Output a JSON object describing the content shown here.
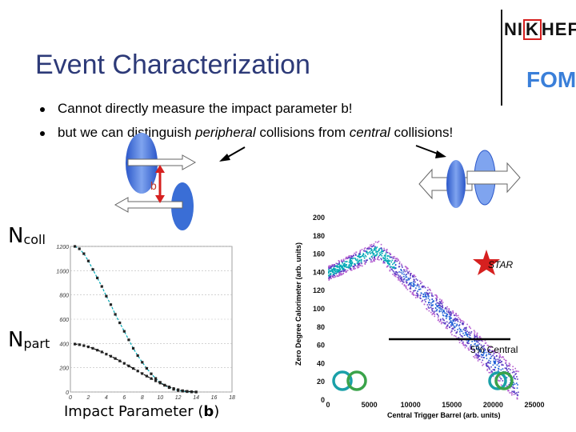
{
  "slide": {
    "title": "Event Characterization",
    "bullets": [
      {
        "pre": "Cannot directly measure the impact parameter b!",
        "em1": "",
        "mid": "",
        "em2": "",
        "post": ""
      },
      {
        "pre": "but we can distinguish ",
        "em1": "peripheral",
        "mid": " collisions from ",
        "em2": "central",
        "post": " collisions!"
      }
    ],
    "logos": {
      "nikhef_pre": "NI",
      "nikhef_k": "K",
      "nikhef_post": "HEF",
      "fom": "FOM"
    },
    "diagram": {
      "impact_label": "b"
    },
    "labels": {
      "ncoll_main": "N",
      "ncoll_sub": "coll",
      "npart_main": "N",
      "npart_sub": "part",
      "impact_axis_pre": "Impact Parameter (",
      "impact_axis_b": "b",
      "impact_axis_post": ")",
      "star": "STAR",
      "central": "5% Central"
    }
  },
  "chart_data": [
    {
      "type": "scatter",
      "title": "",
      "xlabel": "Impact Parameter (b)",
      "ylabel": "",
      "xlim": [
        0,
        18
      ],
      "ylim": [
        0,
        1200
      ],
      "xticks": [
        "0",
        "2",
        "4",
        "6",
        "8",
        "10",
        "12",
        "14",
        "16",
        "18"
      ],
      "yticks": [
        "0",
        "200",
        "400",
        "600",
        "800",
        "1000",
        "1200"
      ],
      "series": [
        {
          "name": "Ncoll",
          "color": "#00a8b5",
          "x": [
            0.5,
            1,
            1.5,
            2,
            2.5,
            3,
            3.5,
            4,
            4.5,
            5,
            5.5,
            6,
            6.5,
            7,
            7.5,
            8,
            8.5,
            9,
            9.5,
            10,
            10.5,
            11,
            11.5,
            12,
            12.5,
            13,
            13.5,
            14
          ],
          "y": [
            1200,
            1180,
            1140,
            1080,
            1010,
            940,
            870,
            790,
            720,
            640,
            570,
            500,
            430,
            360,
            300,
            245,
            195,
            150,
            112,
            80,
            55,
            36,
            22,
            13,
            7,
            3,
            1,
            0
          ]
        },
        {
          "name": "Npart",
          "color": "#111111",
          "x": [
            0.5,
            1,
            1.5,
            2,
            2.5,
            3,
            3.5,
            4,
            4.5,
            5,
            5.5,
            6,
            6.5,
            7,
            7.5,
            8,
            8.5,
            9,
            9.5,
            10,
            10.5,
            11,
            11.5,
            12,
            12.5,
            13,
            13.5,
            14
          ],
          "y": [
            395,
            390,
            382,
            372,
            360,
            345,
            330,
            312,
            295,
            276,
            256,
            236,
            215,
            194,
            173,
            152,
            131,
            111,
            92,
            74,
            57,
            42,
            29,
            19,
            11,
            6,
            2,
            0
          ]
        }
      ]
    },
    {
      "type": "heatmap",
      "title": "",
      "xlabel": "Central Trigger Barrel (arb. units)",
      "ylabel": "Zero Degree Calorimeter (arb. units)",
      "xlim": [
        0,
        25000
      ],
      "ylim": [
        0,
        200
      ],
      "xticks": [
        "0",
        "5000",
        "10000",
        "15000",
        "20000",
        "25000"
      ],
      "yticks": [
        "0",
        "20",
        "40",
        "60",
        "80",
        "100",
        "120",
        "140",
        "160",
        "180",
        "200"
      ],
      "annotations": [
        "STAR",
        "5% Central"
      ]
    }
  ],
  "colors": {
    "title": "#2d3a78",
    "teal": "#00a8b5",
    "purple": "#7a3db8",
    "blue": "#1f5fd6",
    "ellipse": "#3e6fd8"
  }
}
